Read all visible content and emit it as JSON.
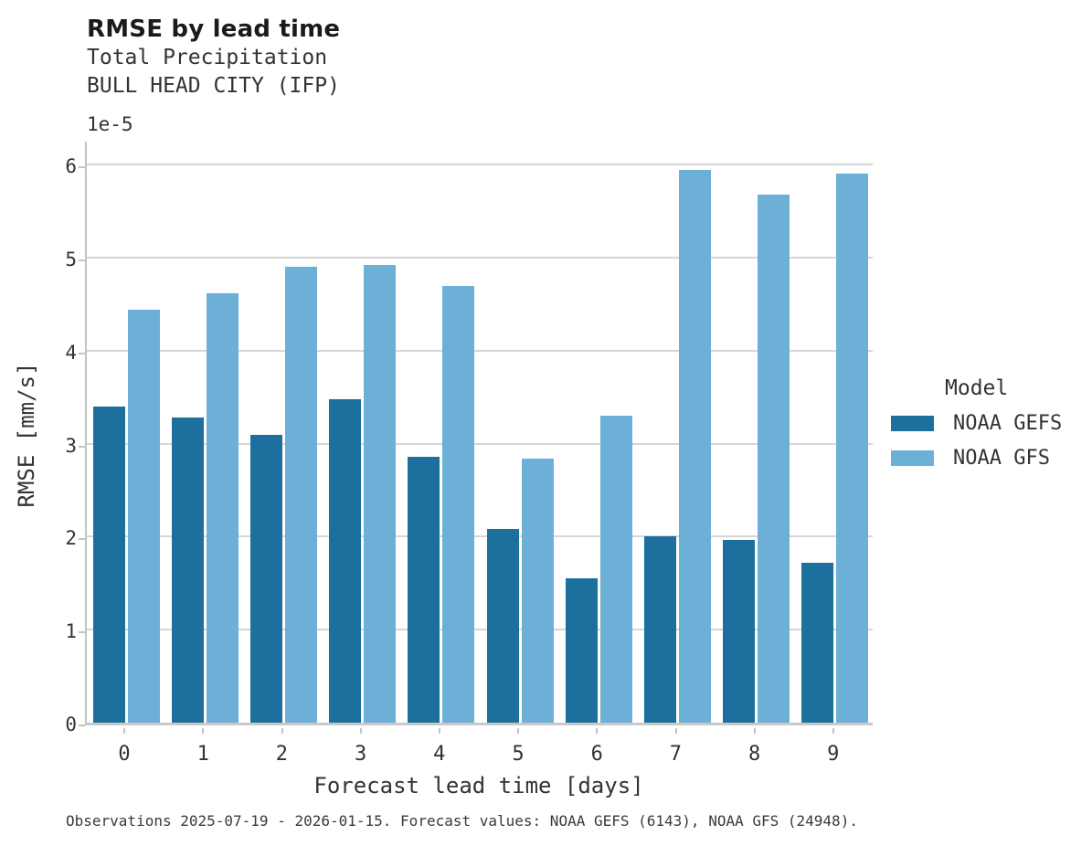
{
  "header": {
    "title": "RMSE by lead time",
    "subtitle_variable": "Total Precipitation",
    "subtitle_location": "BULL HEAD CITY (IFP)"
  },
  "axes": {
    "y_offset_label": "1e-5",
    "ylabel": "RMSE [mm/s]",
    "xlabel": "Forecast lead time [days]"
  },
  "legend": {
    "title": "Model",
    "entries": [
      {
        "label": "NOAA GEFS",
        "color": "#1d6f9e"
      },
      {
        "label": "NOAA GFS",
        "color": "#6cb0d8"
      }
    ]
  },
  "caption": "Observations 2025-07-19 - 2026-01-15. Forecast values: NOAA GEFS (6143), NOAA GFS (24948).",
  "colors": {
    "noaa_gefs": "#1d6f9e",
    "noaa_gfs": "#6cb0d8",
    "gridline": "#d6d6d6",
    "spine": "#c4c4c4",
    "title_text": "#1a1a1a",
    "body_text": "#333333"
  },
  "chart_data": {
    "type": "bar",
    "title": "RMSE by lead time",
    "subtitle": [
      "Total Precipitation",
      "BULL HEAD CITY (IFP)"
    ],
    "categories": [
      "0",
      "1",
      "2",
      "3",
      "4",
      "5",
      "6",
      "7",
      "8",
      "9"
    ],
    "series": [
      {
        "name": "NOAA GEFS",
        "color": "#1d6f9e",
        "values": [
          3.4,
          3.28,
          3.1,
          3.48,
          2.86,
          2.08,
          1.55,
          2.0,
          1.97,
          1.72
        ]
      },
      {
        "name": "NOAA GFS",
        "color": "#6cb0d8",
        "values": [
          4.44,
          4.62,
          4.9,
          4.92,
          4.7,
          2.84,
          3.3,
          5.95,
          5.68,
          5.91
        ]
      }
    ],
    "value_unit_multiplier": "1e-5",
    "value_unit": "mm/s",
    "xlabel": "Forecast lead time [days]",
    "ylabel": "RMSE [mm/s]",
    "ylim": [
      0,
      6.28
    ],
    "yticks": [
      0,
      1,
      2,
      3,
      4,
      5,
      6
    ],
    "grid": true,
    "legend_title": "Model",
    "legend_position": "center right",
    "caption": "Observations 2025-07-19 - 2026-01-15. Forecast values: NOAA GEFS (6143), NOAA GFS (24948)."
  }
}
